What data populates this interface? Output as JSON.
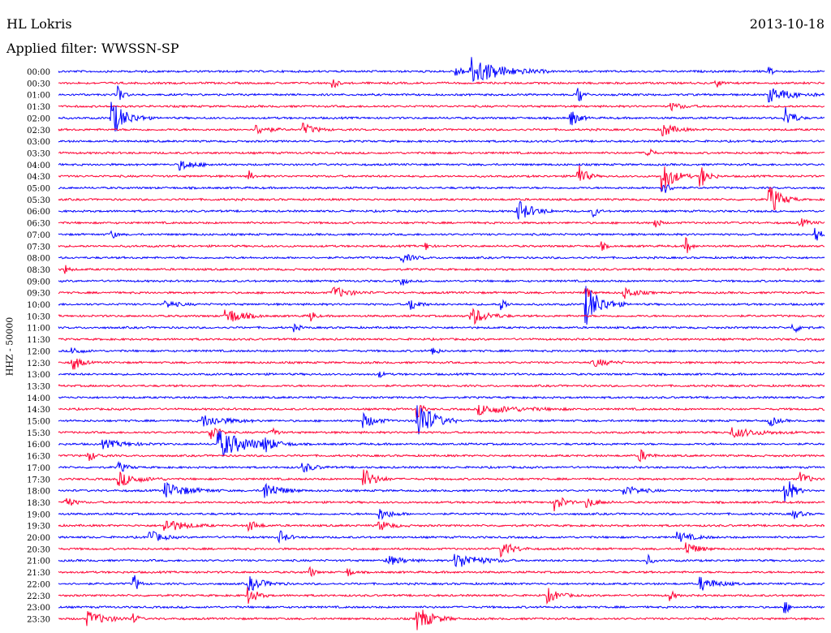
{
  "header": {
    "station": "HL Lokris",
    "date": "2013-10-18",
    "filter_text": "Applied filter: WWSSN-SP"
  },
  "chart_data": {
    "type": "line",
    "title": "HL Lokris",
    "ylabel": "HHZ - 50000",
    "colors": [
      "#0000ff",
      "#ff0033"
    ],
    "rows": [
      {
        "label": "00:00",
        "events": [
          [
            0.54,
            1.4,
            8
          ],
          [
            0.52,
            0.5,
            2
          ],
          [
            0.93,
            0.4,
            1
          ]
        ]
      },
      {
        "label": "00:30",
        "events": [
          [
            0.36,
            0.5,
            1
          ],
          [
            0.86,
            0.4,
            1
          ]
        ]
      },
      {
        "label": "01:00",
        "events": [
          [
            0.08,
            0.9,
            1
          ],
          [
            0.68,
            1.0,
            1
          ],
          [
            0.93,
            0.7,
            6
          ]
        ]
      },
      {
        "label": "01:30",
        "events": [
          [
            0.8,
            0.4,
            3
          ]
        ]
      },
      {
        "label": "02:00",
        "events": [
          [
            0.07,
            1.8,
            4
          ],
          [
            0.67,
            0.8,
            2
          ],
          [
            0.95,
            1.2,
            2
          ]
        ]
      },
      {
        "label": "02:30",
        "events": [
          [
            0.26,
            0.5,
            3
          ],
          [
            0.32,
            0.6,
            3
          ],
          [
            0.79,
            0.7,
            3
          ]
        ]
      },
      {
        "label": "03:00",
        "events": []
      },
      {
        "label": "03:30",
        "events": [
          [
            0.77,
            0.8,
            1
          ]
        ]
      },
      {
        "label": "04:00",
        "events": [
          [
            0.16,
            0.5,
            4
          ]
        ]
      },
      {
        "label": "04:30",
        "events": [
          [
            0.25,
            0.5,
            1
          ],
          [
            0.68,
            1.1,
            2
          ],
          [
            0.79,
            1.6,
            3
          ],
          [
            0.84,
            1.0,
            2
          ]
        ]
      },
      {
        "label": "05:00",
        "events": [
          [
            0.79,
            0.6,
            2
          ]
        ]
      },
      {
        "label": "05:30",
        "events": [
          [
            0.93,
            1.4,
            3
          ]
        ]
      },
      {
        "label": "06:00",
        "events": [
          [
            0.6,
            1.1,
            4
          ],
          [
            0.7,
            0.5,
            1
          ]
        ]
      },
      {
        "label": "06:30",
        "events": [
          [
            0.78,
            0.6,
            1
          ],
          [
            0.97,
            0.4,
            2
          ]
        ]
      },
      {
        "label": "07:00",
        "events": [
          [
            0.07,
            0.5,
            1
          ],
          [
            0.99,
            1.0,
            1
          ]
        ]
      },
      {
        "label": "07:30",
        "events": [
          [
            0.48,
            0.4,
            1
          ],
          [
            0.82,
            0.9,
            1
          ],
          [
            0.71,
            0.4,
            1
          ]
        ]
      },
      {
        "label": "08:00",
        "events": [
          [
            0.45,
            0.4,
            3
          ]
        ]
      },
      {
        "label": "08:30",
        "events": [
          [
            0.01,
            0.4,
            1
          ]
        ]
      },
      {
        "label": "09:00",
        "events": [
          [
            0.45,
            0.4,
            1
          ]
        ]
      },
      {
        "label": "09:30",
        "events": [
          [
            0.36,
            0.6,
            4
          ],
          [
            0.74,
            0.6,
            3
          ],
          [
            0.69,
            0.6,
            1
          ]
        ]
      },
      {
        "label": "10:00",
        "events": [
          [
            0.69,
            2.0,
            4
          ],
          [
            0.46,
            0.7,
            2
          ],
          [
            0.58,
            0.7,
            1
          ],
          [
            0.14,
            0.4,
            3
          ]
        ]
      },
      {
        "label": "10:30",
        "events": [
          [
            0.22,
            0.9,
            4
          ],
          [
            0.54,
            0.9,
            4
          ],
          [
            0.33,
            0.6,
            1
          ]
        ]
      },
      {
        "label": "11:00",
        "events": [
          [
            0.96,
            0.5,
            2
          ],
          [
            0.31,
            0.4,
            1
          ]
        ]
      },
      {
        "label": "11:30",
        "events": []
      },
      {
        "label": "12:00",
        "events": [
          [
            0.49,
            0.6,
            1
          ],
          [
            0.02,
            0.4,
            2
          ]
        ]
      },
      {
        "label": "12:30",
        "events": [
          [
            0.02,
            0.8,
            2
          ],
          [
            0.7,
            0.4,
            4
          ]
        ]
      },
      {
        "label": "13:00",
        "events": [
          [
            0.42,
            0.3,
            1
          ]
        ]
      },
      {
        "label": "13:30",
        "events": []
      },
      {
        "label": "14:00",
        "events": []
      },
      {
        "label": "14:30",
        "events": [
          [
            0.47,
            1.2,
            1
          ],
          [
            0.55,
            0.5,
            10
          ]
        ]
      },
      {
        "label": "15:00",
        "events": [
          [
            0.47,
            2.2,
            4
          ],
          [
            0.4,
            0.7,
            3
          ],
          [
            0.19,
            0.6,
            6
          ],
          [
            0.93,
            0.5,
            2
          ]
        ]
      },
      {
        "label": "15:30",
        "events": [
          [
            0.2,
            0.9,
            2
          ],
          [
            0.28,
            0.6,
            1
          ],
          [
            0.88,
            0.5,
            7
          ]
        ]
      },
      {
        "label": "16:00",
        "events": [
          [
            0.21,
            1.4,
            8
          ],
          [
            0.27,
            0.9,
            3
          ],
          [
            0.06,
            0.4,
            6
          ]
        ]
      },
      {
        "label": "16:30",
        "events": [
          [
            0.04,
            0.5,
            2
          ],
          [
            0.76,
            0.6,
            2
          ]
        ]
      },
      {
        "label": "17:00",
        "events": [
          [
            0.08,
            0.5,
            2
          ],
          [
            0.32,
            0.5,
            3
          ]
        ]
      },
      {
        "label": "17:30",
        "events": [
          [
            0.08,
            0.7,
            5
          ],
          [
            0.4,
            1.0,
            3
          ],
          [
            0.97,
            0.7,
            2
          ]
        ]
      },
      {
        "label": "18:00",
        "events": [
          [
            0.14,
            0.8,
            6
          ],
          [
            0.27,
            0.9,
            4
          ],
          [
            0.95,
            1.6,
            2
          ],
          [
            0.74,
            0.5,
            4
          ]
        ]
      },
      {
        "label": "18:30",
        "events": [
          [
            0.65,
            1.0,
            2
          ],
          [
            0.01,
            0.6,
            2
          ],
          [
            0.69,
            0.5,
            3
          ]
        ]
      },
      {
        "label": "19:00",
        "events": [
          [
            0.42,
            0.6,
            3
          ],
          [
            0.96,
            0.5,
            2
          ]
        ]
      },
      {
        "label": "19:30",
        "events": [
          [
            0.14,
            0.7,
            5
          ],
          [
            0.25,
            0.6,
            2
          ],
          [
            0.42,
            0.5,
            3
          ]
        ]
      },
      {
        "label": "20:00",
        "events": [
          [
            0.12,
            0.7,
            3
          ],
          [
            0.29,
            0.6,
            2
          ],
          [
            0.81,
            0.5,
            4
          ]
        ]
      },
      {
        "label": "20:30",
        "events": [
          [
            0.58,
            0.8,
            3
          ],
          [
            0.82,
            0.7,
            3
          ]
        ]
      },
      {
        "label": "21:00",
        "events": [
          [
            0.52,
            0.8,
            6
          ],
          [
            0.43,
            0.5,
            4
          ],
          [
            0.77,
            0.5,
            1
          ]
        ]
      },
      {
        "label": "21:30",
        "events": [
          [
            0.33,
            0.5,
            1
          ],
          [
            0.38,
            0.4,
            1
          ]
        ]
      },
      {
        "label": "22:00",
        "events": [
          [
            0.1,
            0.9,
            1
          ],
          [
            0.25,
            0.7,
            4
          ],
          [
            0.84,
            0.7,
            4
          ]
        ]
      },
      {
        "label": "22:30",
        "events": [
          [
            0.25,
            0.9,
            2
          ],
          [
            0.64,
            0.7,
            3
          ],
          [
            0.8,
            0.5,
            1
          ]
        ]
      },
      {
        "label": "23:00",
        "events": [
          [
            0.95,
            0.6,
            1
          ]
        ]
      },
      {
        "label": "23:30",
        "events": [
          [
            0.04,
            0.7,
            5
          ],
          [
            0.47,
            1.2,
            4
          ],
          [
            0.1,
            0.5,
            1
          ]
        ]
      }
    ]
  }
}
